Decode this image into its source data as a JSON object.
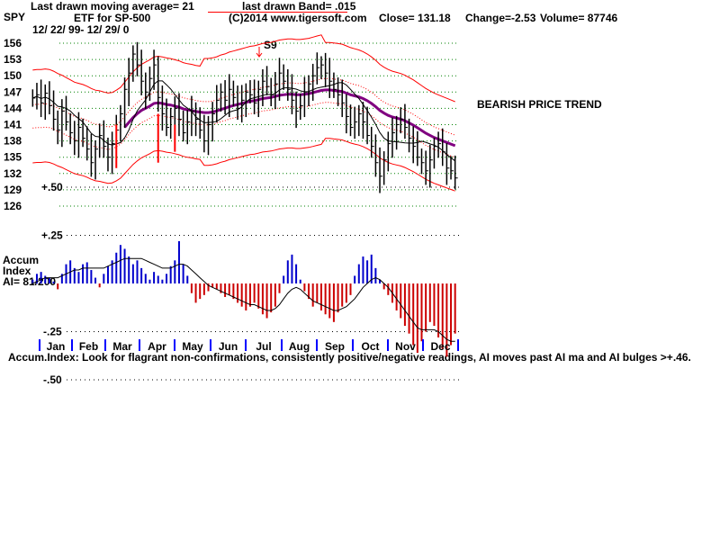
{
  "header": {
    "symbol": "SPY",
    "ma_text": "Last drawn moving average= 21",
    "band_text": "last drawn Band= .015",
    "etf_text": "ETF for SP-500",
    "copyright": "(C)2014 www.tigersoft.com",
    "close_text": "Close=  131.18",
    "change_text": "Change=-2.53",
    "volume_text": "Volume=  87746",
    "date_range": "12/ 22/ 99- 12/ 29/ 0"
  },
  "annotations": {
    "signal": "S9",
    "trend": "BEARISH PRICE TREND"
  },
  "accum": {
    "label_line1": "Accum",
    "label_line2": "Index",
    "label_line3": "AI= 81/200"
  },
  "footer": "Accum.Index: Look for flagrant non-confirmations, consistently positive/negative readings, AI moves past AI ma and AI bulges >+.46.",
  "colors": {
    "band": "#ff0000",
    "inner_band": "#ff0000",
    "ma_long": "#800080",
    "ma_short": "#000000",
    "bars": "#000000",
    "ai_positive": "#0000cc",
    "ai_negative": "#cc0000",
    "grid": "#008000",
    "month_tick": "#0000ff"
  },
  "chart_data": {
    "type": "line",
    "price_ticks": [
      "156",
      "153",
      "150",
      "147",
      "144",
      "141",
      "138",
      "135",
      "132",
      "129",
      "126"
    ],
    "price_ylim": [
      124,
      159
    ],
    "ai_ticks": [
      "+.50",
      "+.25",
      "-.25",
      "-.50"
    ],
    "ai_ylim": [
      -0.55,
      0.6
    ],
    "months": [
      "Jan",
      "Feb",
      "Mar",
      "Apr",
      "May",
      "Jun",
      "Jul",
      "Aug",
      "Sep",
      "Oct",
      "Nov",
      "Dec"
    ],
    "close_series": [
      145.9,
      146.5,
      145.0,
      146.8,
      144.5,
      142.0,
      140.0,
      143.5,
      141.5,
      139.5,
      138.0,
      140.5,
      138.5,
      136.5,
      134.0,
      136.5,
      139.0,
      137.0,
      135.0,
      137.5,
      140.0,
      143.0,
      147.5,
      150.5,
      154.0,
      152.0,
      149.0,
      147.0,
      149.5,
      152.0,
      146.0,
      143.0,
      140.5,
      142.5,
      144.0,
      142.0,
      139.5,
      141.5,
      143.5,
      142.0,
      140.0,
      138.0,
      141.0,
      143.0,
      145.5,
      147.0,
      145.5,
      147.5,
      146.0,
      144.0,
      145.5,
      147.0,
      146.5,
      145.0,
      147.5,
      149.0,
      148.0,
      146.5,
      148.5,
      150.5,
      149.0,
      147.5,
      145.5,
      143.5,
      144.5,
      147.0,
      148.5,
      150.0,
      151.5,
      152.0,
      150.5,
      149.0,
      147.5,
      146.5,
      145.0,
      142.5,
      140.5,
      141.5,
      143.0,
      141.5,
      139.0,
      137.0,
      134.0,
      131.5,
      134.5,
      137.5,
      139.5,
      141.0,
      142.0,
      140.5,
      138.5,
      137.0,
      135.0,
      134.0,
      132.5,
      134.5,
      137.0,
      137.5,
      136.0,
      133.0,
      132.5,
      131.18
    ],
    "ma21": [
      142.5,
      142.6,
      142.6,
      142.7,
      142.6,
      142.3,
      141.9,
      141.6,
      141.2,
      140.8,
      140.4,
      140.2,
      140.0,
      139.7,
      139.3,
      139.0,
      138.9,
      138.7,
      138.5,
      138.6,
      139.0,
      139.5,
      140.4,
      141.3,
      142.2,
      142.9,
      143.5,
      143.9,
      144.3,
      144.8,
      144.9,
      144.8,
      144.6,
      144.5,
      144.3,
      144.1,
      143.8,
      143.6,
      143.5,
      143.3,
      143.2,
      143.1,
      143.1,
      143.2,
      143.4,
      143.7,
      143.9,
      144.2,
      144.4,
      144.6,
      144.8,
      145.0,
      145.2,
      145.3,
      145.5,
      145.7,
      145.8,
      145.9,
      146.1,
      146.3,
      146.4,
      146.5,
      146.5,
      146.4,
      146.4,
      146.5,
      146.6,
      146.8,
      147.0,
      147.2,
      147.3,
      147.3,
      147.2,
      147.1,
      147.0,
      146.7,
      146.4,
      146.2,
      146.0,
      145.7,
      145.3,
      144.8,
      144.2,
      143.5,
      143.0,
      142.6,
      142.3,
      142.1,
      141.9,
      141.6,
      141.2,
      140.8,
      140.3,
      139.8,
      139.3,
      138.9,
      138.5,
      138.2,
      137.9,
      137.6,
      137.3,
      137.0
    ],
    "accum_index": [
      0.02,
      0.05,
      0.06,
      0.04,
      0.03,
      0.01,
      -0.03,
      0.05,
      0.1,
      0.12,
      0.08,
      0.06,
      0.1,
      0.11,
      0.07,
      0.03,
      -0.02,
      0.05,
      0.09,
      0.12,
      0.16,
      0.2,
      0.18,
      0.14,
      0.1,
      0.12,
      0.08,
      0.05,
      0.02,
      0.06,
      0.04,
      0.02,
      0.05,
      0.09,
      0.12,
      0.22,
      0.1,
      0.04,
      -0.05,
      -0.1,
      -0.08,
      -0.06,
      -0.04,
      -0.02,
      -0.03,
      -0.05,
      -0.07,
      -0.06,
      -0.08,
      -0.1,
      -0.12,
      -0.14,
      -0.12,
      -0.1,
      -0.13,
      -0.16,
      -0.18,
      -0.15,
      -0.12,
      -0.05,
      0.04,
      0.12,
      0.15,
      0.1,
      0.02,
      -0.04,
      -0.08,
      -0.12,
      -0.1,
      -0.14,
      -0.16,
      -0.18,
      -0.2,
      -0.15,
      -0.12,
      -0.1,
      -0.06,
      0.04,
      0.1,
      0.14,
      0.12,
      0.15,
      0.08,
      0.02,
      -0.03,
      -0.06,
      -0.1,
      -0.14,
      -0.18,
      -0.22,
      -0.26,
      -0.32,
      -0.36,
      -0.3,
      -0.25,
      -0.2,
      -0.22,
      -0.28,
      -0.34,
      -0.38,
      -0.32,
      -0.26
    ],
    "ai_ma": [
      0.0,
      0.01,
      0.02,
      0.03,
      0.03,
      0.03,
      0.03,
      0.04,
      0.05,
      0.06,
      0.07,
      0.07,
      0.08,
      0.08,
      0.08,
      0.08,
      0.08,
      0.08,
      0.09,
      0.1,
      0.11,
      0.12,
      0.13,
      0.13,
      0.13,
      0.13,
      0.13,
      0.12,
      0.11,
      0.1,
      0.09,
      0.08,
      0.08,
      0.08,
      0.09,
      0.1,
      0.1,
      0.09,
      0.07,
      0.05,
      0.03,
      0.01,
      -0.01,
      -0.02,
      -0.03,
      -0.04,
      -0.05,
      -0.06,
      -0.07,
      -0.08,
      -0.09,
      -0.1,
      -0.11,
      -0.11,
      -0.12,
      -0.13,
      -0.14,
      -0.14,
      -0.13,
      -0.11,
      -0.08,
      -0.05,
      -0.03,
      -0.02,
      -0.03,
      -0.05,
      -0.07,
      -0.09,
      -0.1,
      -0.11,
      -0.12,
      -0.13,
      -0.14,
      -0.14,
      -0.13,
      -0.12,
      -0.1,
      -0.08,
      -0.05,
      -0.02,
      0.0,
      0.02,
      0.03,
      0.02,
      0.0,
      -0.02,
      -0.05,
      -0.08,
      -0.11,
      -0.14,
      -0.17,
      -0.2,
      -0.23,
      -0.24,
      -0.24,
      -0.24,
      -0.24,
      -0.25,
      -0.27,
      -0.29,
      -0.3,
      -0.3
    ]
  }
}
